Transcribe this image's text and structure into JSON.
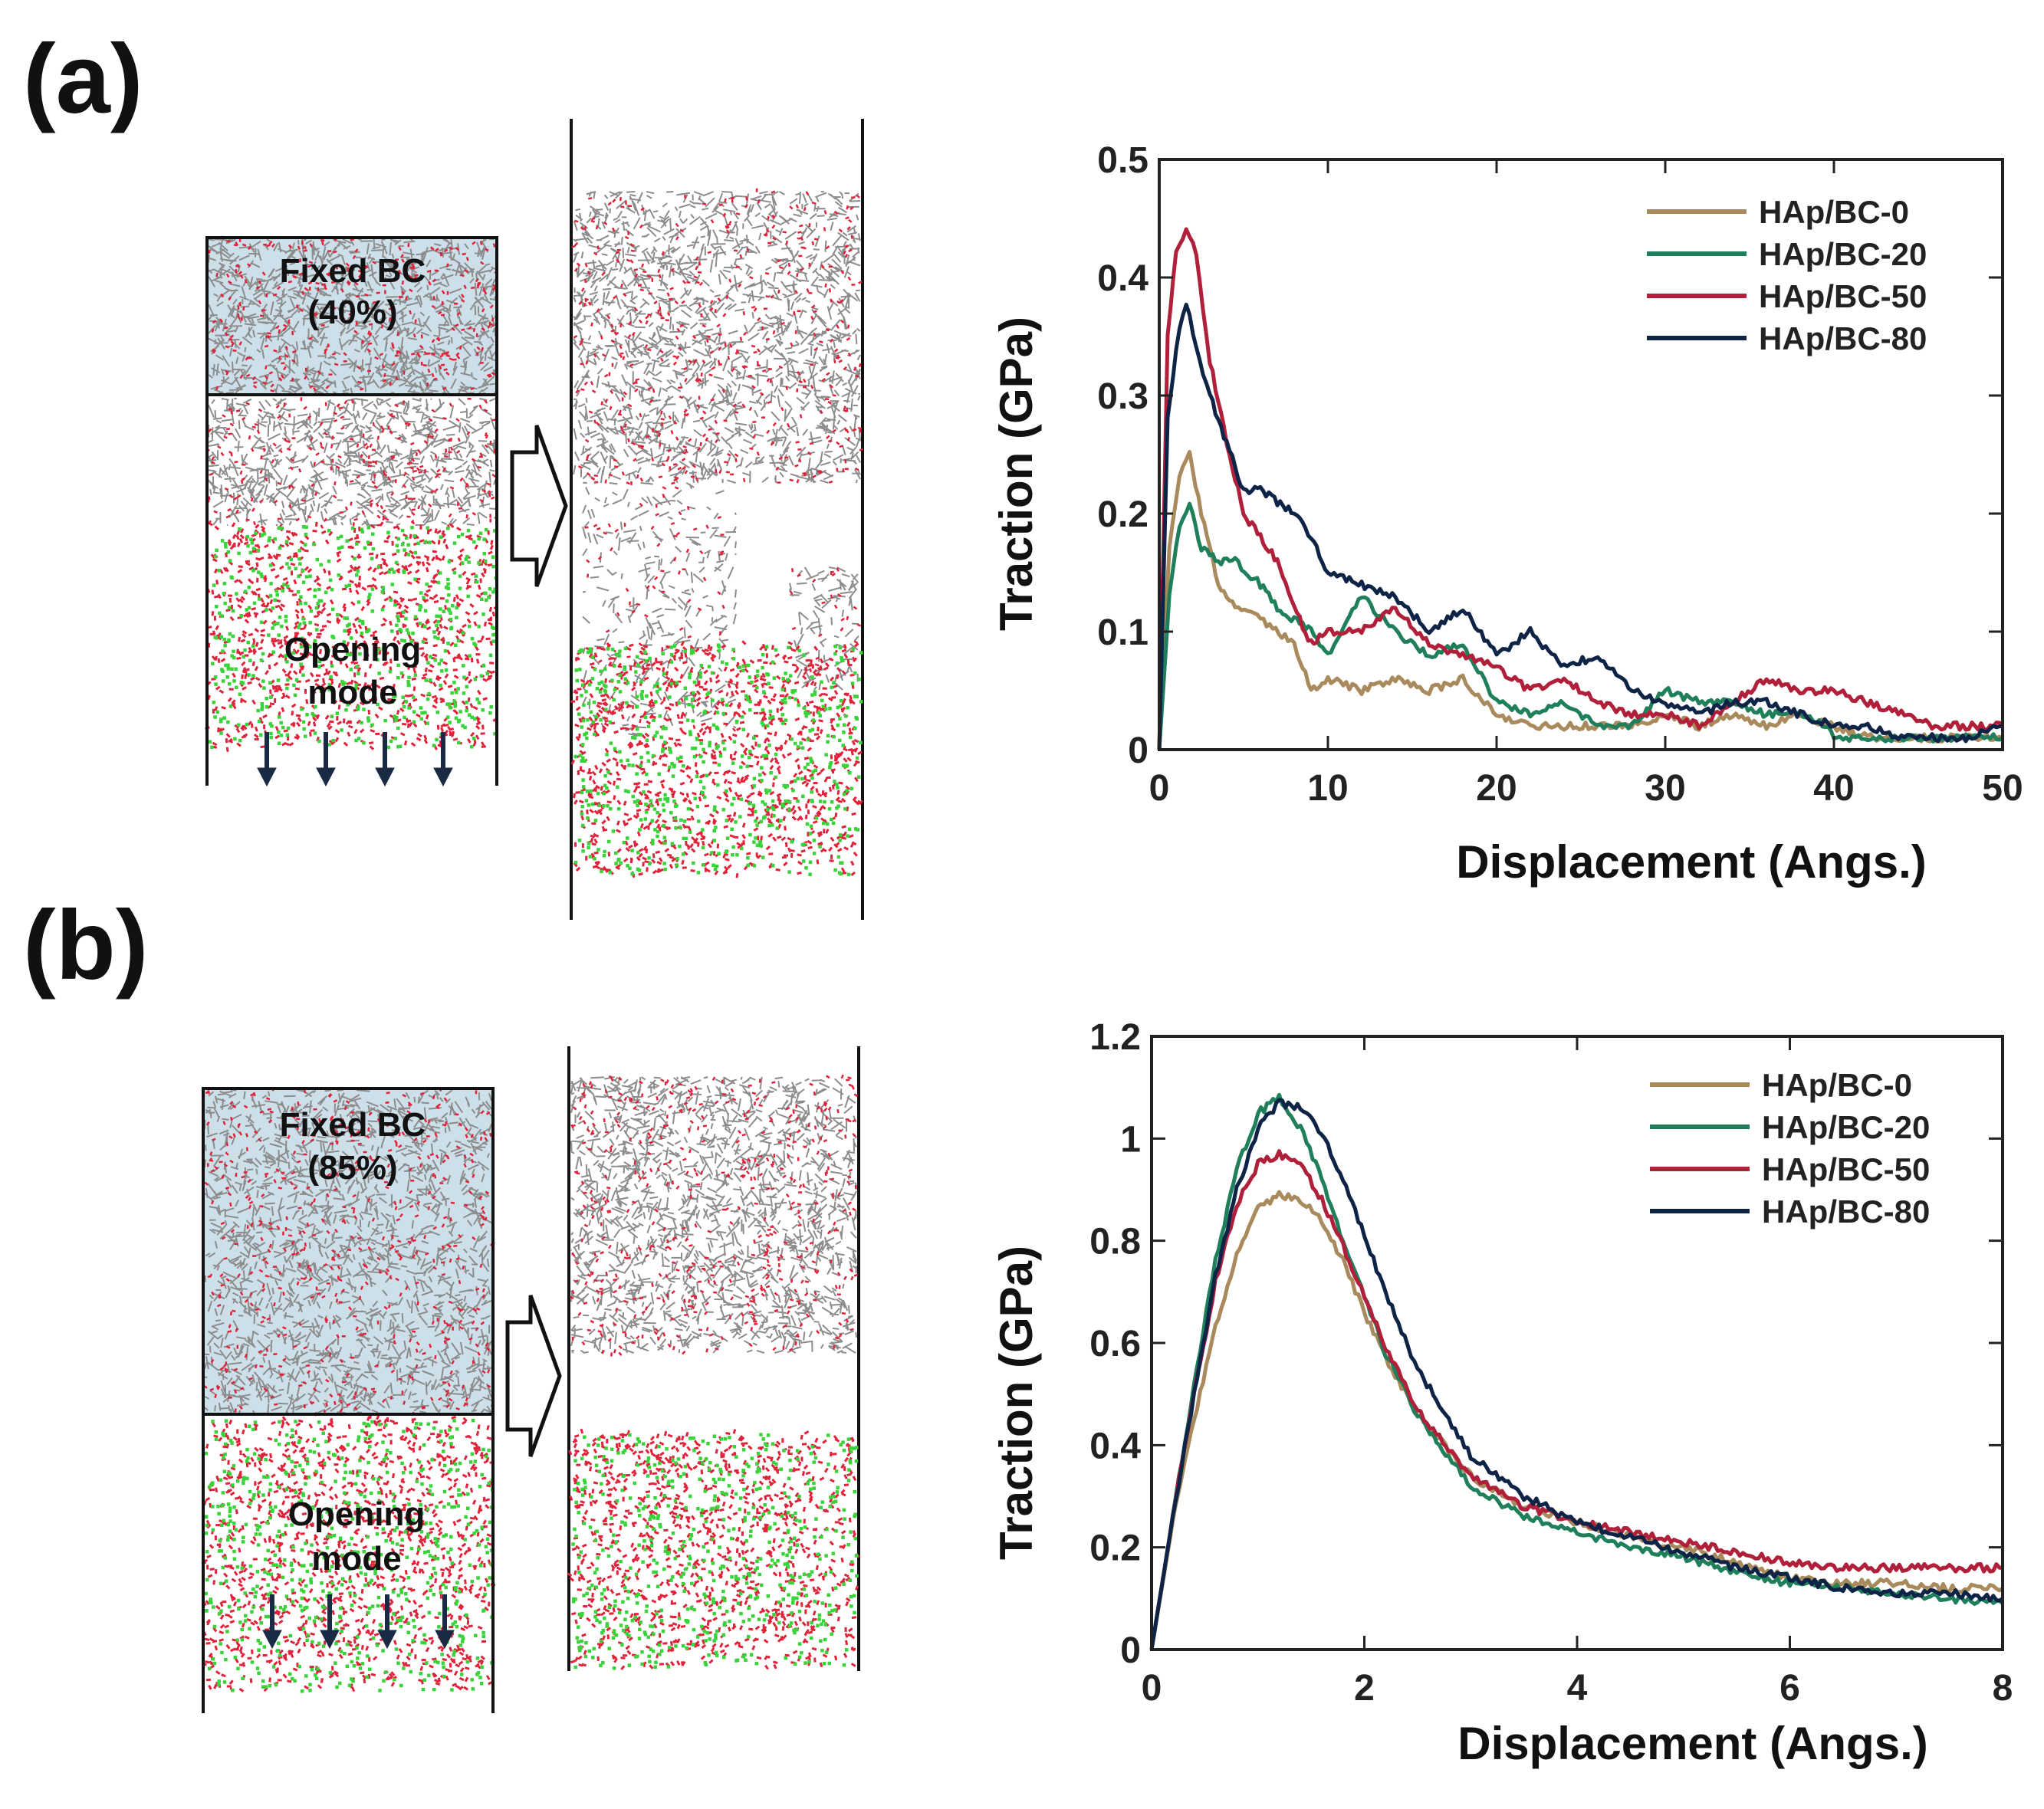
{
  "panels": {
    "a": {
      "label": "(a)",
      "fixed_label": "Fixed BC",
      "fixed_pct": "(40%)",
      "mode_line1": "Opening",
      "mode_line2": "mode"
    },
    "b": {
      "label": "(b)",
      "fixed_label": "Fixed BC",
      "fixed_pct": "(85%)",
      "mode_line1": "Opening",
      "mode_line2": "mode"
    }
  },
  "colors": {
    "HAp/BC-0": "#a88a5c",
    "HAp/BC-20": "#1f7f5a",
    "HAp/BC-50": "#b0203a",
    "HAp/BC-80": "#0e2447",
    "cellulose_bg": "#cde0ea",
    "hap_red": "#e0223a",
    "hap_green": "#39d33a"
  },
  "chart_data": [
    {
      "type": "line",
      "xlabel": "Displacement (Angs.)",
      "ylabel": "Traction (GPa)",
      "xlim": [
        0,
        50
      ],
      "ylim": [
        0,
        0.5
      ],
      "xticks": [
        "0",
        "10",
        "20",
        "30",
        "40",
        "50"
      ],
      "yticks": [
        "0",
        "0.1",
        "0.2",
        "0.3",
        "0.4",
        "0.5"
      ],
      "legend_position": "top-right",
      "grid": false,
      "series": [
        {
          "name": "HAp/BC-0",
          "x": [
            0,
            0.6,
            1.2,
            1.8,
            2.5,
            3.5,
            4.5,
            6,
            8,
            9,
            10,
            12,
            14,
            16,
            18,
            20,
            22,
            24,
            26,
            28,
            30,
            32,
            34,
            36,
            38,
            40,
            42,
            45,
            48,
            50
          ],
          "y": [
            0,
            0.17,
            0.23,
            0.25,
            0.2,
            0.14,
            0.12,
            0.11,
            0.09,
            0.05,
            0.06,
            0.05,
            0.06,
            0.05,
            0.06,
            0.03,
            0.02,
            0.02,
            0.02,
            0.02,
            0.03,
            0.02,
            0.03,
            0.02,
            0.03,
            0.02,
            0.01,
            0.01,
            0.01,
            0.01
          ]
        },
        {
          "name": "HAp/BC-20",
          "x": [
            0,
            0.6,
            1.2,
            1.8,
            2.5,
            3.5,
            4.5,
            6,
            7,
            8,
            9,
            10,
            12,
            14,
            16,
            18,
            20,
            22,
            24,
            26,
            28,
            30,
            32,
            34,
            36,
            38,
            39.5,
            40,
            42,
            45,
            48,
            50
          ],
          "y": [
            0,
            0.13,
            0.19,
            0.21,
            0.17,
            0.16,
            0.16,
            0.14,
            0.12,
            0.11,
            0.1,
            0.08,
            0.13,
            0.1,
            0.08,
            0.09,
            0.04,
            0.03,
            0.04,
            0.02,
            0.02,
            0.05,
            0.04,
            0.04,
            0.03,
            0.03,
            0.02,
            0.01,
            0.01,
            0.01,
            0.01,
            0.01
          ]
        },
        {
          "name": "HAp/BC-50",
          "x": [
            0,
            0.5,
            1,
            1.6,
            2.2,
            3,
            4,
            5,
            6,
            7,
            8,
            9,
            10,
            12,
            14,
            16,
            18,
            20,
            22,
            24,
            26,
            28,
            30,
            32,
            34,
            36,
            38,
            40,
            42,
            44,
            46,
            48,
            50
          ],
          "y": [
            0,
            0.35,
            0.42,
            0.44,
            0.42,
            0.33,
            0.26,
            0.2,
            0.18,
            0.16,
            0.12,
            0.09,
            0.1,
            0.1,
            0.12,
            0.09,
            0.08,
            0.07,
            0.05,
            0.06,
            0.04,
            0.03,
            0.03,
            0.02,
            0.04,
            0.06,
            0.05,
            0.05,
            0.04,
            0.03,
            0.02,
            0.02,
            0.02
          ]
        },
        {
          "name": "HAp/BC-80",
          "x": [
            0,
            0.5,
            1,
            1.6,
            2.2,
            3,
            4,
            5,
            6,
            7,
            8,
            9,
            10,
            12,
            14,
            16,
            18,
            20,
            22,
            24,
            26,
            28,
            30,
            32,
            34,
            36,
            38,
            40,
            42,
            44,
            46,
            48,
            50
          ],
          "y": [
            0,
            0.28,
            0.34,
            0.38,
            0.34,
            0.3,
            0.26,
            0.22,
            0.22,
            0.21,
            0.2,
            0.18,
            0.15,
            0.14,
            0.13,
            0.1,
            0.12,
            0.08,
            0.1,
            0.07,
            0.08,
            0.05,
            0.04,
            0.03,
            0.04,
            0.04,
            0.03,
            0.02,
            0.02,
            0.01,
            0.01,
            0.01,
            0.02
          ]
        }
      ]
    },
    {
      "type": "line",
      "xlabel": "Displacement (Angs.)",
      "ylabel": "Traction (GPa)",
      "xlim": [
        0,
        8
      ],
      "ylim": [
        0,
        1.2
      ],
      "xticks": [
        "0",
        "2",
        "4",
        "6",
        "8"
      ],
      "yticks": [
        "0",
        "0.2",
        "0.4",
        "0.6",
        "0.8",
        "1",
        "1.2"
      ],
      "legend_position": "top-right",
      "grid": false,
      "series": [
        {
          "name": "HAp/BC-0",
          "x": [
            0,
            0.2,
            0.4,
            0.6,
            0.8,
            1.0,
            1.2,
            1.4,
            1.6,
            1.8,
            2.0,
            2.2,
            2.5,
            3.0,
            3.5,
            4.0,
            4.5,
            5.0,
            5.5,
            6.0,
            6.5,
            7.0,
            7.5,
            8.0
          ],
          "y": [
            0,
            0.25,
            0.45,
            0.63,
            0.77,
            0.86,
            0.89,
            0.88,
            0.84,
            0.76,
            0.66,
            0.57,
            0.46,
            0.34,
            0.28,
            0.25,
            0.22,
            0.2,
            0.17,
            0.14,
            0.13,
            0.13,
            0.12,
            0.12
          ]
        },
        {
          "name": "HAp/BC-20",
          "x": [
            0,
            0.2,
            0.4,
            0.6,
            0.8,
            1.0,
            1.2,
            1.4,
            1.6,
            1.8,
            2.0,
            2.2,
            2.5,
            3.0,
            3.5,
            4.0,
            4.5,
            5.0,
            5.5,
            6.0,
            6.5,
            7.0,
            7.5,
            8.0
          ],
          "y": [
            0,
            0.26,
            0.52,
            0.76,
            0.94,
            1.05,
            1.08,
            1.02,
            0.92,
            0.8,
            0.69,
            0.58,
            0.46,
            0.32,
            0.26,
            0.23,
            0.2,
            0.18,
            0.15,
            0.13,
            0.12,
            0.11,
            0.1,
            0.09
          ]
        },
        {
          "name": "HAp/BC-50",
          "x": [
            0,
            0.2,
            0.4,
            0.6,
            0.8,
            1.0,
            1.2,
            1.4,
            1.6,
            1.8,
            2.0,
            2.2,
            2.5,
            3.0,
            3.5,
            4.0,
            4.5,
            5.0,
            5.5,
            6.0,
            6.5,
            7.0,
            7.5,
            8.0
          ],
          "y": [
            0,
            0.26,
            0.5,
            0.72,
            0.87,
            0.95,
            0.97,
            0.95,
            0.88,
            0.79,
            0.69,
            0.59,
            0.47,
            0.34,
            0.28,
            0.25,
            0.23,
            0.21,
            0.19,
            0.17,
            0.16,
            0.16,
            0.16,
            0.16
          ]
        },
        {
          "name": "HAp/BC-80",
          "x": [
            0,
            0.2,
            0.4,
            0.6,
            0.8,
            1.0,
            1.2,
            1.4,
            1.6,
            1.8,
            2.0,
            2.2,
            2.5,
            3.0,
            3.5,
            4.0,
            4.5,
            5.0,
            5.5,
            6.0,
            6.5,
            7.0,
            7.5,
            8.0
          ],
          "y": [
            0,
            0.26,
            0.5,
            0.73,
            0.9,
            1.02,
            1.07,
            1.06,
            1.01,
            0.92,
            0.81,
            0.7,
            0.55,
            0.38,
            0.3,
            0.25,
            0.22,
            0.19,
            0.16,
            0.14,
            0.12,
            0.11,
            0.11,
            0.1
          ]
        }
      ]
    }
  ]
}
